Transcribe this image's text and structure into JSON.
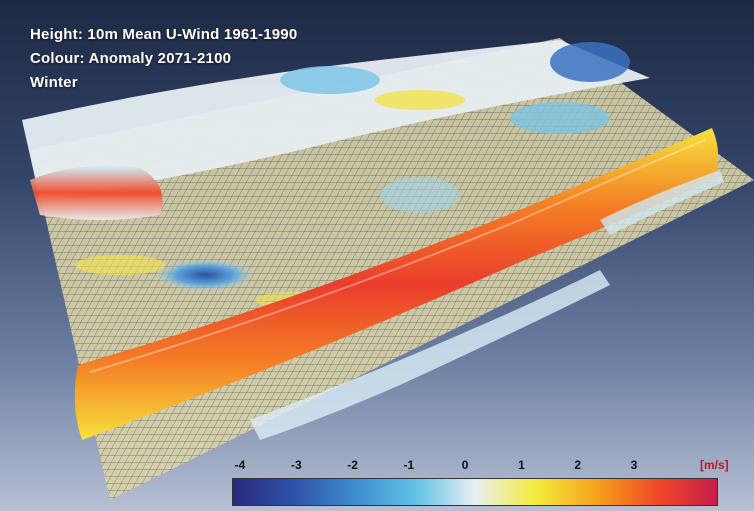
{
  "title_lines": {
    "height": "Height: 10m Mean U-Wind 1961-1990",
    "colour": "Colour: Anomaly 2071-2100",
    "season": "Winter"
  },
  "colorbar": {
    "ticks": [
      "-4",
      "-3",
      "-2",
      "-1",
      "0",
      "1",
      "2",
      "3"
    ],
    "units": "[m/s]",
    "colors": [
      "#262a7e",
      "#2f51a8",
      "#3e8ccf",
      "#5fc1e6",
      "#e8eef2",
      "#f5ec3d",
      "#f6a21c",
      "#ef4a26",
      "#c81d4b"
    ]
  }
}
